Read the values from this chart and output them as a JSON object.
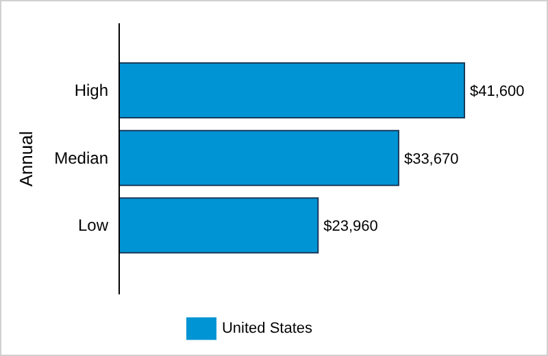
{
  "chart_data": {
    "type": "bar",
    "orientation": "horizontal",
    "ylabel": "Annual",
    "categories": [
      "High",
      "Median",
      "Low"
    ],
    "series": [
      {
        "name": "United States",
        "color": "#0094d4",
        "values": [
          41600,
          33670,
          23960
        ],
        "value_labels": [
          "$41,600",
          "$33,670",
          "$23,960"
        ]
      }
    ],
    "legend": "bottom",
    "grid": false
  }
}
